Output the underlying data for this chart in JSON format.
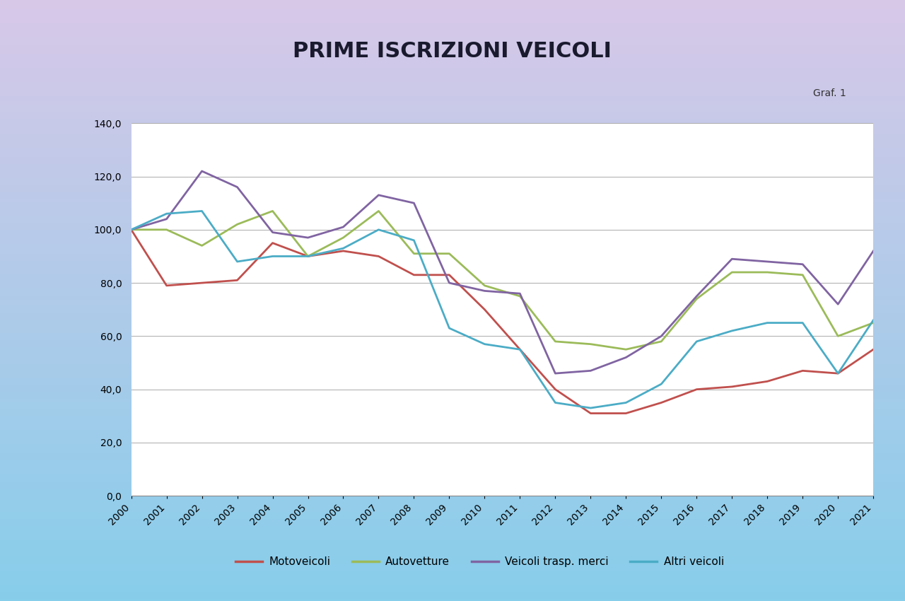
{
  "title": "PRIME ISCRIZIONI VEICOLI",
  "subtitle": "Graf. 1",
  "years": [
    2000,
    2001,
    2002,
    2003,
    2004,
    2005,
    2006,
    2007,
    2008,
    2009,
    2010,
    2011,
    2012,
    2013,
    2014,
    2015,
    2016,
    2017,
    2018,
    2019,
    2020,
    2021
  ],
  "motoveicoli": [
    100,
    79,
    80,
    81,
    95,
    90,
    92,
    90,
    83,
    83,
    70,
    55,
    40,
    31,
    31,
    35,
    40,
    41,
    43,
    47,
    46,
    55
  ],
  "autovetture": [
    100,
    100,
    94,
    102,
    107,
    90,
    97,
    107,
    91,
    91,
    79,
    75,
    58,
    57,
    55,
    58,
    74,
    84,
    84,
    83,
    60,
    65
  ],
  "veicoli_trasp_merci": [
    100,
    104,
    122,
    116,
    99,
    97,
    101,
    113,
    110,
    80,
    77,
    76,
    46,
    47,
    52,
    60,
    75,
    89,
    88,
    87,
    72,
    92
  ],
  "altri_veicoli": [
    100,
    106,
    107,
    88,
    90,
    90,
    93,
    100,
    96,
    63,
    57,
    55,
    35,
    33,
    35,
    42,
    58,
    62,
    65,
    65,
    46,
    66
  ],
  "colors": {
    "motoveicoli": "#C0504D",
    "autovetture": "#9BBB59",
    "veicoli_trasp_merci": "#8064A2",
    "altri_veicoli": "#4BACC6"
  },
  "legend_labels": [
    "Motoveicoli",
    "Autovetture",
    "Veicoli trasp. merci",
    "Altri veicoli"
  ],
  "ylim": [
    0,
    140
  ],
  "yticks": [
    0,
    20,
    40,
    60,
    80,
    100,
    120,
    140
  ],
  "ytick_labels": [
    "0,0",
    "20,0",
    "40,0",
    "60,0",
    "80,0",
    "100,0",
    "120,0",
    "140,0"
  ],
  "bg_top_color": "#87CEEB",
  "bg_bottom_color": "#D8C8E8",
  "plot_bg_color": "#FFFFFF",
  "title_fontsize": 22,
  "axis_fontsize": 10,
  "line_width": 2.0
}
